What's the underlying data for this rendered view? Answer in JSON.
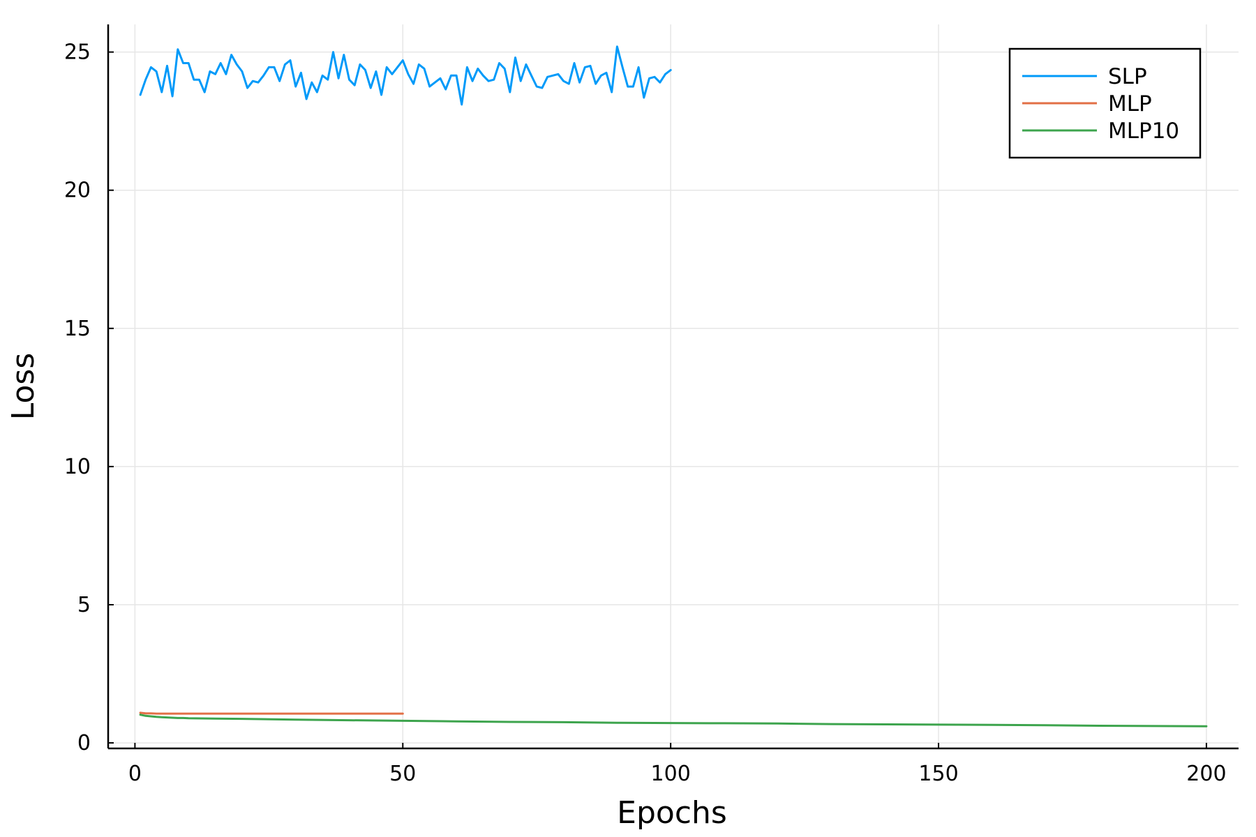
{
  "chart_data": {
    "type": "line",
    "xlabel": "Epochs",
    "ylabel": "Loss",
    "xlim": [
      -5,
      206
    ],
    "ylim": [
      -0.2,
      26
    ],
    "xticks": [
      0,
      50,
      100,
      150,
      200
    ],
    "yticks": [
      0,
      5,
      10,
      15,
      20,
      25
    ],
    "grid": true,
    "legend_position": "top-right",
    "series": [
      {
        "name": "SLP",
        "color": "#009af9",
        "x": [
          1,
          2,
          3,
          4,
          5,
          6,
          7,
          8,
          9,
          10,
          11,
          12,
          13,
          14,
          15,
          16,
          17,
          18,
          19,
          20,
          21,
          22,
          23,
          24,
          25,
          26,
          27,
          28,
          29,
          30,
          31,
          32,
          33,
          34,
          35,
          36,
          37,
          38,
          39,
          40,
          41,
          42,
          43,
          44,
          45,
          46,
          47,
          48,
          49,
          50,
          51,
          52,
          53,
          54,
          55,
          56,
          57,
          58,
          59,
          60,
          61,
          62,
          63,
          64,
          65,
          66,
          67,
          68,
          69,
          70,
          71,
          72,
          73,
          74,
          75,
          76,
          77,
          78,
          79,
          80,
          81,
          82,
          83,
          84,
          85,
          86,
          87,
          88,
          89,
          90,
          91,
          92,
          93,
          94,
          95,
          96,
          97,
          98,
          99,
          100
        ],
        "y": [
          23.45,
          24.0,
          24.45,
          24.3,
          23.55,
          24.5,
          23.4,
          25.1,
          24.6,
          24.6,
          24.0,
          24.0,
          23.55,
          24.3,
          24.2,
          24.6,
          24.2,
          24.9,
          24.55,
          24.3,
          23.7,
          23.95,
          23.9,
          24.15,
          24.45,
          24.45,
          23.95,
          24.55,
          24.7,
          23.75,
          24.25,
          23.3,
          23.9,
          23.55,
          24.15,
          24.0,
          25.0,
          24.05,
          24.9,
          24.0,
          23.8,
          24.55,
          24.35,
          23.7,
          24.3,
          23.45,
          24.45,
          24.2,
          24.45,
          24.7,
          24.2,
          23.85,
          24.55,
          24.4,
          23.75,
          23.9,
          24.05,
          23.65,
          24.15,
          24.15,
          23.1,
          24.45,
          23.95,
          24.4,
          24.15,
          23.95,
          24.0,
          24.6,
          24.4,
          23.55,
          24.8,
          23.95,
          24.55,
          24.15,
          23.75,
          23.7,
          24.1,
          24.15,
          24.2,
          23.95,
          23.85,
          24.6,
          23.9,
          24.45,
          24.5,
          23.85,
          24.15,
          24.25,
          23.55,
          25.2,
          24.45,
          23.75,
          23.75,
          24.45,
          23.35,
          24.05,
          24.1,
          23.9,
          24.2,
          24.35
        ]
      },
      {
        "name": "MLP",
        "color": "#e26f46",
        "x": [
          1,
          2,
          3,
          4,
          5,
          6,
          7,
          8,
          9,
          10,
          15,
          20,
          25,
          30,
          35,
          40,
          45,
          50
        ],
        "y": [
          1.09,
          1.07,
          1.07,
          1.06,
          1.06,
          1.06,
          1.06,
          1.06,
          1.06,
          1.06,
          1.06,
          1.06,
          1.06,
          1.06,
          1.06,
          1.06,
          1.06,
          1.06
        ]
      },
      {
        "name": "MLP10",
        "color": "#3da44d",
        "x": [
          1,
          2,
          3,
          4,
          5,
          6,
          7,
          8,
          9,
          10,
          15,
          20,
          30,
          40,
          50,
          60,
          70,
          80,
          90,
          100,
          110,
          120,
          130,
          140,
          150,
          160,
          170,
          180,
          190,
          200
        ],
        "y": [
          1.02,
          0.98,
          0.96,
          0.94,
          0.93,
          0.92,
          0.91,
          0.9,
          0.9,
          0.89,
          0.88,
          0.87,
          0.84,
          0.82,
          0.8,
          0.78,
          0.76,
          0.75,
          0.73,
          0.72,
          0.71,
          0.7,
          0.68,
          0.67,
          0.66,
          0.65,
          0.64,
          0.62,
          0.61,
          0.6
        ]
      }
    ]
  }
}
